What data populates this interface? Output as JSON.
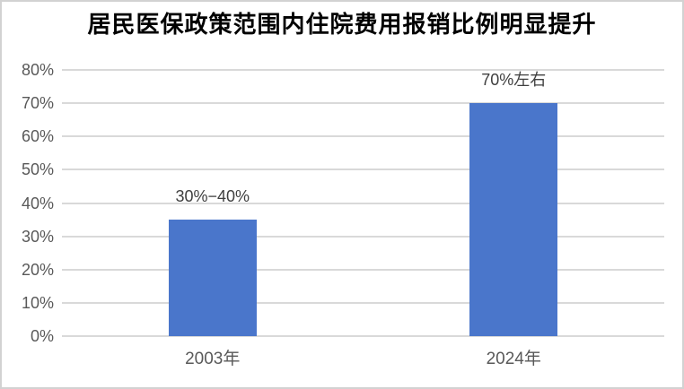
{
  "chart_data": {
    "type": "bar",
    "title": "居民医保政策范围内住院费用报销比例明显提升",
    "categories": [
      "2003年",
      "2024年"
    ],
    "values": [
      35,
      70
    ],
    "data_labels": [
      "30%−40%",
      "70%左右"
    ],
    "xlabel": "",
    "ylabel": "",
    "ylim": [
      0,
      80
    ],
    "ytick_step": 10,
    "yticks": [
      {
        "value": 80,
        "label": "80%"
      },
      {
        "value": 70,
        "label": "70%"
      },
      {
        "value": 60,
        "label": "60%"
      },
      {
        "value": 50,
        "label": "50%"
      },
      {
        "value": 40,
        "label": "40%"
      },
      {
        "value": 30,
        "label": "30%"
      },
      {
        "value": 20,
        "label": "20%"
      },
      {
        "value": 10,
        "label": "10%"
      },
      {
        "value": 0,
        "label": "0%"
      }
    ],
    "grid": true,
    "legend": false,
    "colors": {
      "bar": "#4a76cb",
      "gridline": "#d9d9d9",
      "tick_label": "#595959",
      "category_label": "#595959",
      "data_label": "#3f3f3f",
      "title": "#000000",
      "background": "#ffffff",
      "border": "#d2d2d2"
    }
  }
}
